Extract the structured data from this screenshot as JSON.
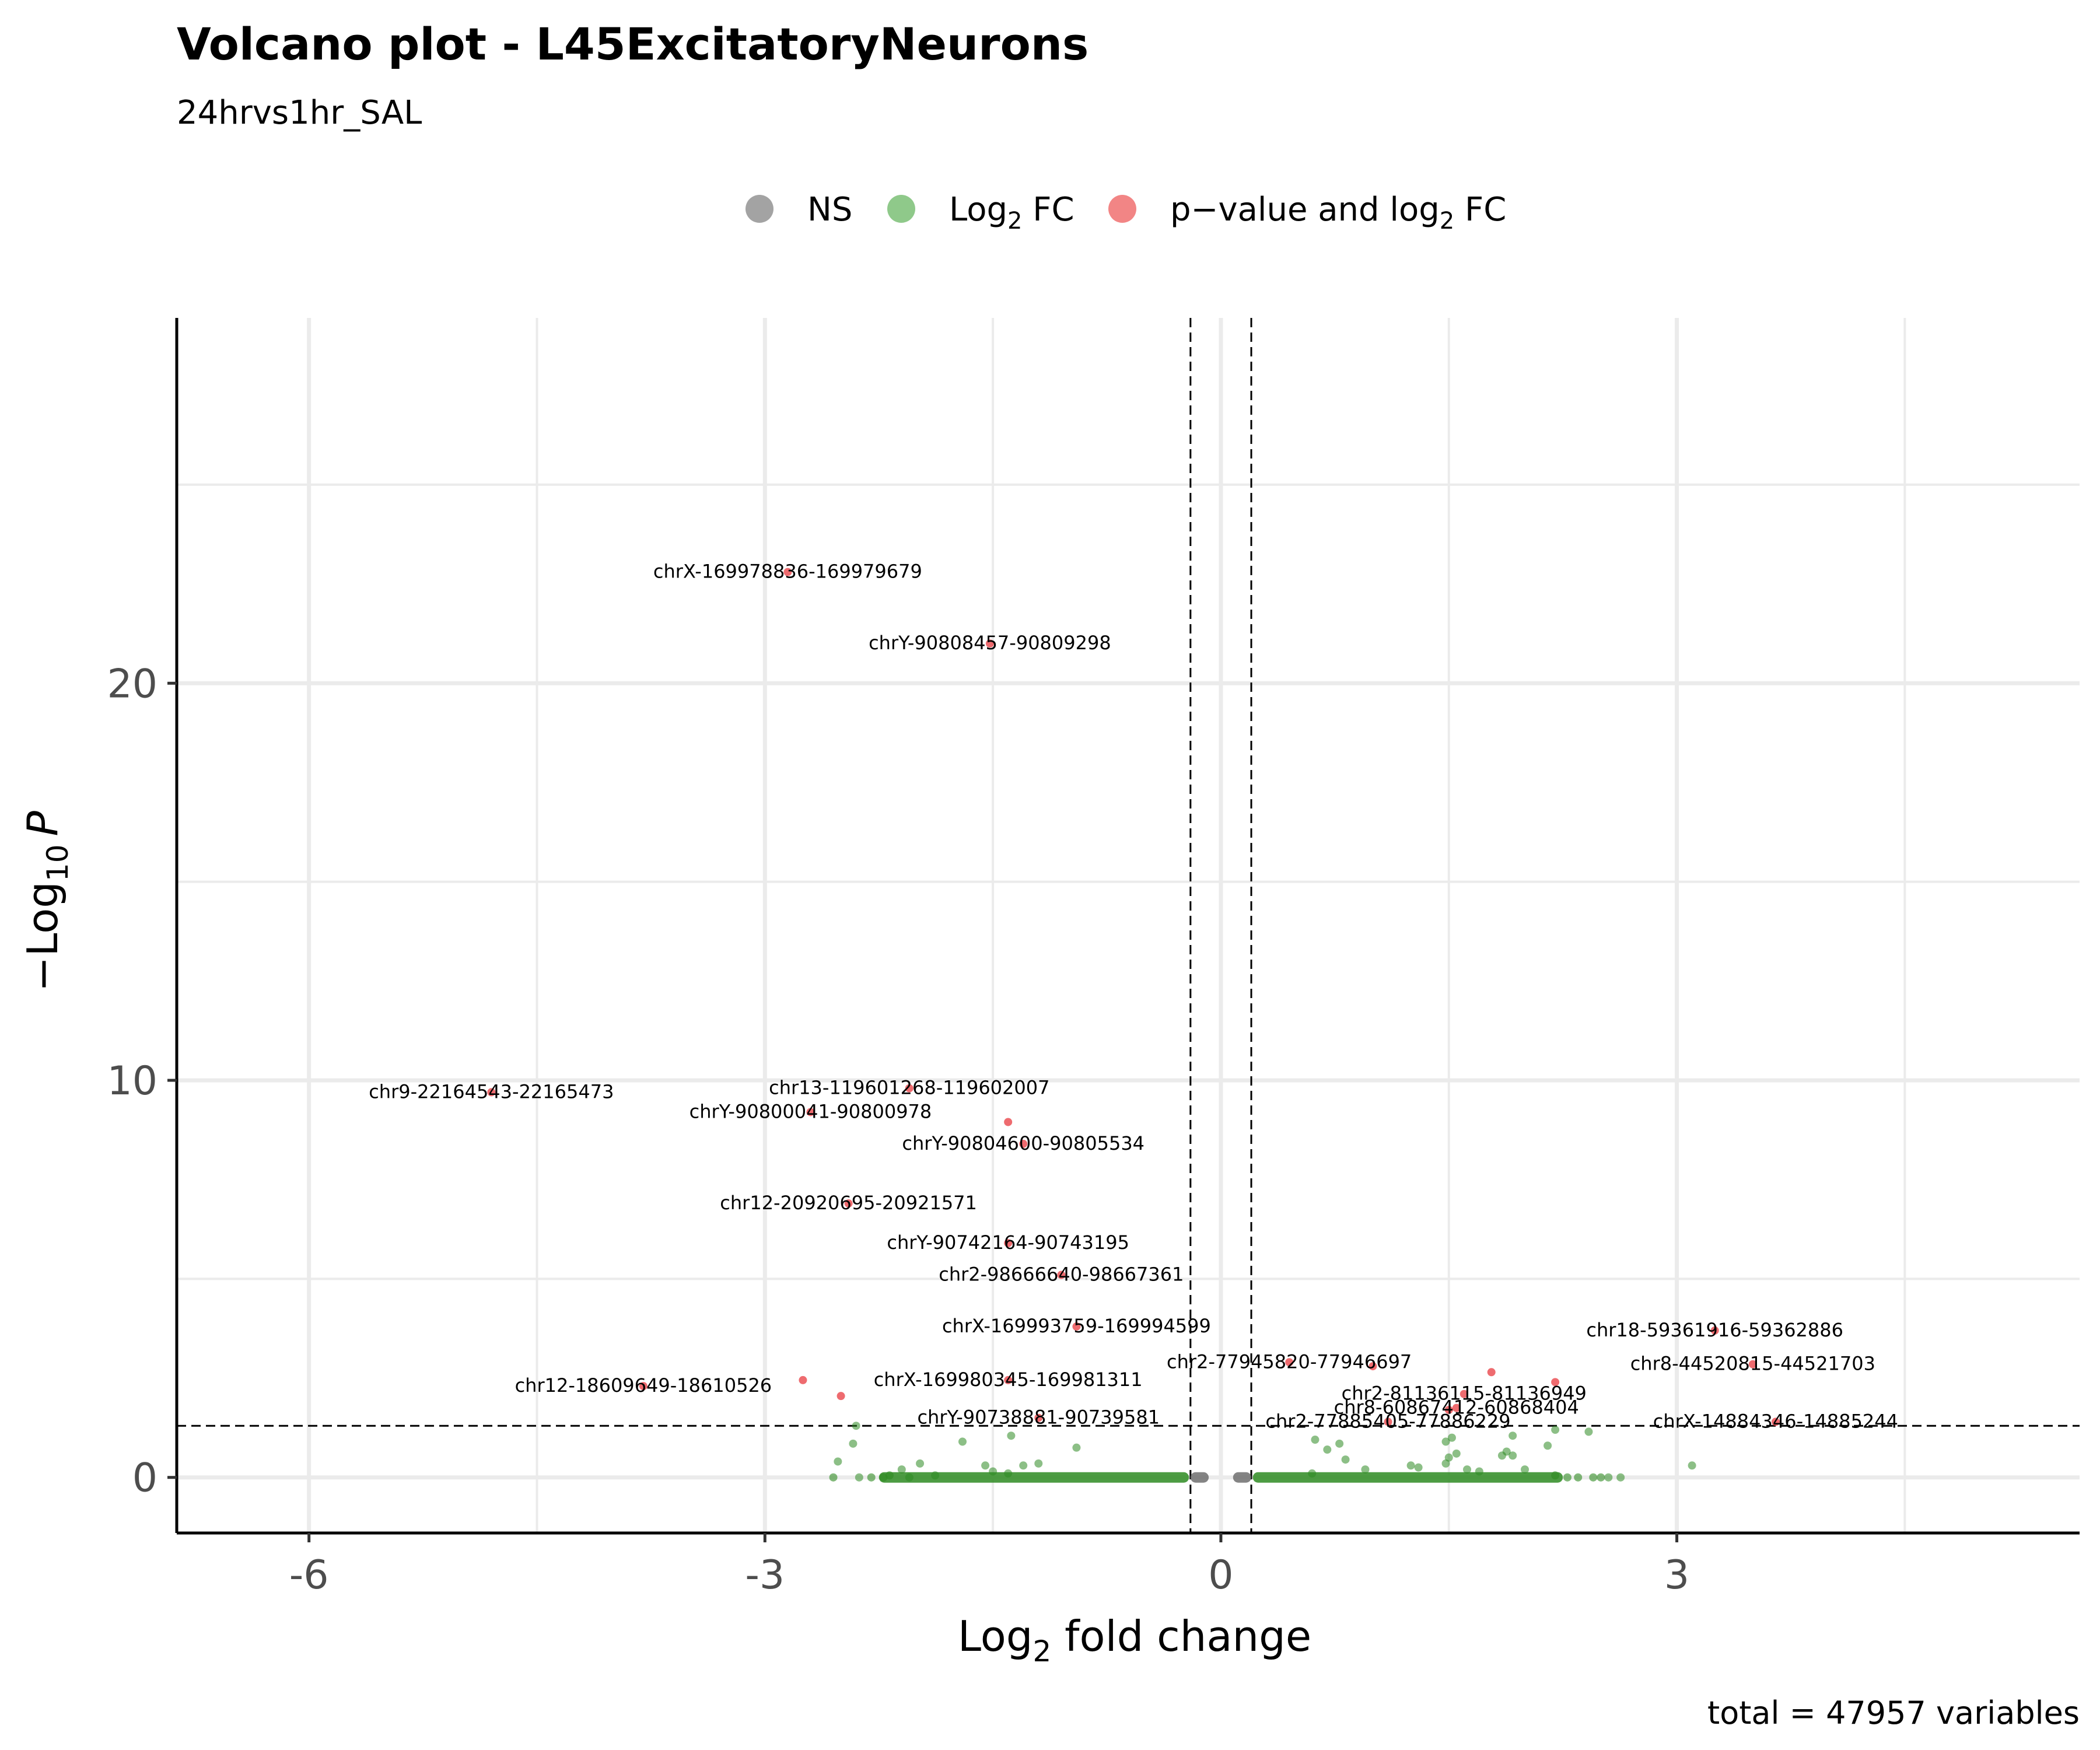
{
  "chart_data": {
    "type": "scatter",
    "title": "Volcano plot - L45ExcitatoryNeurons",
    "subtitle": "24hrvs1hr_SAL",
    "xlabel": {
      "base": "Log",
      "sub": "2",
      "rest": " fold change"
    },
    "ylabel": {
      "prefix": "−Log",
      "sub": "10",
      "var": "P"
    },
    "caption": "total = 47957 variables",
    "xlim": [
      -6.87,
      5.65
    ],
    "ylim": [
      -1.4,
      29.2
    ],
    "x_ticks": [
      {
        "value": -6,
        "label": "-6"
      },
      {
        "value": -3,
        "label": "-3"
      },
      {
        "value": 0,
        "label": "0"
      },
      {
        "value": 3,
        "label": "3"
      }
    ],
    "y_ticks": [
      {
        "value": 0,
        "label": "0"
      },
      {
        "value": 10,
        "label": "10"
      },
      {
        "value": 20,
        "label": "20"
      }
    ],
    "grid": true,
    "fc_cutoff": 0.2,
    "p_cutoff": 1.3,
    "colors": {
      "ns": "#6e6e6e",
      "fc": "#2e8b22",
      "both": "#e8393f",
      "grid": "#ebebeb",
      "axis": "#000000"
    },
    "legend": {
      "position": "top",
      "items": [
        {
          "key": "ns",
          "text": "NS",
          "color": "#a3a3a3"
        },
        {
          "key": "fc",
          "text": "Log",
          "sub": "2",
          "after": " FC",
          "color": "#8fc98a"
        },
        {
          "key": "both",
          "text": "p−value and log",
          "sub": "2",
          "after": " FC",
          "color": "#f28585"
        }
      ]
    },
    "labeled_points": [
      {
        "label": "chrX-169978836-169979679",
        "x": -2.85,
        "y": 22.8
      },
      {
        "label": "chrY-90808457-90809298",
        "x": -1.52,
        "y": 21.0
      },
      {
        "label": "chr9-22164543-22165473",
        "x": -4.8,
        "y": 9.7
      },
      {
        "label": "chr13-119601268-119602007",
        "x": -2.05,
        "y": 9.8
      },
      {
        "label": "chrY-90800041-90800978",
        "x": -2.7,
        "y": 9.2
      },
      {
        "label": "chrY-90804600-90805534",
        "x": -1.3,
        "y": 8.4
      },
      {
        "label": "chr12-20920695-20921571",
        "x": -2.45,
        "y": 6.9
      },
      {
        "label": "chrY-90742164-90743195",
        "x": -1.4,
        "y": 5.9
      },
      {
        "label": "chr2-98666640-98667361",
        "x": -1.05,
        "y": 5.1
      },
      {
        "label": "chrX-169993759-169994599",
        "x": -0.95,
        "y": 3.8
      },
      {
        "label": "chrX-169980345-169981311",
        "x": -1.4,
        "y": 2.45
      },
      {
        "label": "chr12-18609649-18610526",
        "x": -3.8,
        "y": 2.3
      },
      {
        "label": "chrY-90738881-90739581",
        "x": -1.2,
        "y": 1.5
      },
      {
        "label": "chr2-77945820-77946697",
        "x": 0.45,
        "y": 2.9
      },
      {
        "label": "chr2-81136115-81136949",
        "x": 1.6,
        "y": 2.1
      },
      {
        "label": "chr8-60867412-60868404",
        "x": 1.55,
        "y": 1.75
      },
      {
        "label": "chr2-77885405-77886229",
        "x": 1.1,
        "y": 1.4
      },
      {
        "label": "chr18-59361916-59362886",
        "x": 3.25,
        "y": 3.7
      },
      {
        "label": "chr8-44520815-44521703",
        "x": 3.5,
        "y": 2.85
      },
      {
        "label": "chrX-14884346-14885244",
        "x": 3.65,
        "y": 1.4
      }
    ],
    "other_significant": [
      {
        "x": -2.75,
        "y": 2.45
      },
      {
        "x": -2.5,
        "y": 2.05
      },
      {
        "x": -1.4,
        "y": 8.95
      },
      {
        "x": 1.0,
        "y": 2.8
      },
      {
        "x": 1.78,
        "y": 2.65
      },
      {
        "x": 2.2,
        "y": 2.4
      },
      {
        "x": 1.5,
        "y": 1.7
      }
    ],
    "scatter_fc": [
      {
        "x": -2.4,
        "y": 1.3
      },
      {
        "x": -2.52,
        "y": 0.4
      },
      {
        "x": -2.42,
        "y": 0.85
      },
      {
        "x": -2.38,
        "y": 0.0
      },
      {
        "x": -2.1,
        "y": 0.2
      },
      {
        "x": -2.05,
        "y": 0.0
      },
      {
        "x": -1.98,
        "y": 0.35
      },
      {
        "x": -1.88,
        "y": 0.05
      },
      {
        "x": -1.7,
        "y": 0.9
      },
      {
        "x": -1.55,
        "y": 0.3
      },
      {
        "x": -1.5,
        "y": 0.15
      },
      {
        "x": -1.4,
        "y": 0.1
      },
      {
        "x": -1.38,
        "y": 1.05
      },
      {
        "x": -1.3,
        "y": 0.3
      },
      {
        "x": -1.2,
        "y": 0.35
      },
      {
        "x": -0.95,
        "y": 0.75
      },
      {
        "x": 0.62,
        "y": 0.95
      },
      {
        "x": 0.7,
        "y": 0.7
      },
      {
        "x": 0.78,
        "y": 0.85
      },
      {
        "x": 0.82,
        "y": 0.45
      },
      {
        "x": 0.6,
        "y": 0.1
      },
      {
        "x": 0.95,
        "y": 0.2
      },
      {
        "x": 1.25,
        "y": 0.3
      },
      {
        "x": 1.3,
        "y": 0.25
      },
      {
        "x": 1.48,
        "y": 0.9
      },
      {
        "x": 1.52,
        "y": 1.0
      },
      {
        "x": 1.48,
        "y": 0.35
      },
      {
        "x": 1.5,
        "y": 0.5
      },
      {
        "x": 1.55,
        "y": 0.6
      },
      {
        "x": 1.62,
        "y": 0.2
      },
      {
        "x": 1.7,
        "y": 0.15
      },
      {
        "x": 1.85,
        "y": 0.55
      },
      {
        "x": 1.88,
        "y": 0.65
      },
      {
        "x": 1.92,
        "y": 0.55
      },
      {
        "x": 1.92,
        "y": 1.05
      },
      {
        "x": 2.0,
        "y": 0.2
      },
      {
        "x": 2.15,
        "y": 0.8
      },
      {
        "x": 2.2,
        "y": 1.2
      },
      {
        "x": 2.42,
        "y": 1.15
      },
      {
        "x": 2.55,
        "y": 0.0
      },
      {
        "x": 2.63,
        "y": 0.0
      },
      {
        "x": 3.1,
        "y": 0.3
      }
    ],
    "dense_bands": [
      {
        "kind": "fc",
        "x_from": -2.25,
        "x_to": -0.21
      },
      {
        "kind": "fc",
        "x_from": 0.21,
        "x_to": 2.25
      },
      {
        "kind": "ns",
        "x_from": -0.2,
        "x_to": -0.08
      },
      {
        "kind": "ns",
        "x_from": 0.08,
        "x_to": 0.2
      }
    ]
  }
}
